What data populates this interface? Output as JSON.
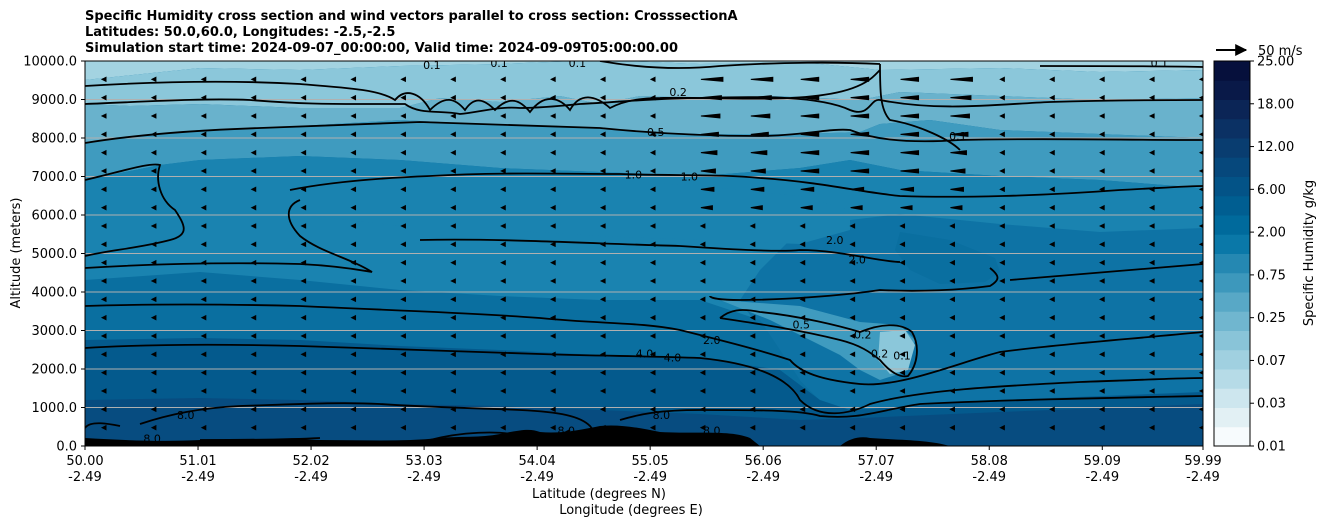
{
  "chart_data": {
    "type": "contour",
    "title_lines": [
      "Specific Humidity cross section and wind vectors parallel to cross section: CrosssectionA",
      "Latitudes: 50.0,60.0, Longitudes: -2.5,-2.5",
      "Simulation start time: 2024-09-07_00:00:00, Valid time: 2024-09-09T05:00:00.00"
    ],
    "xlabel_lines": [
      "Latitude (degrees N)",
      "Longitude (degrees E)"
    ],
    "ylabel": "Altitude (meters)",
    "x_ticks": [
      {
        "lat": "50.00",
        "lon": "-2.49"
      },
      {
        "lat": "51.01",
        "lon": "-2.49"
      },
      {
        "lat": "52.02",
        "lon": "-2.49"
      },
      {
        "lat": "53.03",
        "lon": "-2.49"
      },
      {
        "lat": "54.04",
        "lon": "-2.49"
      },
      {
        "lat": "55.05",
        "lon": "-2.49"
      },
      {
        "lat": "56.06",
        "lon": "-2.49"
      },
      {
        "lat": "57.07",
        "lon": "-2.49"
      },
      {
        "lat": "58.08",
        "lon": "-2.49"
      },
      {
        "lat": "59.09",
        "lon": "-2.49"
      },
      {
        "lat": "59.99",
        "lon": "-2.49"
      }
    ],
    "xlim": [
      50.0,
      59.99
    ],
    "y_ticks": [
      "0.0",
      "1000.0",
      "2000.0",
      "3000.0",
      "4000.0",
      "5000.0",
      "6000.0",
      "7000.0",
      "8000.0",
      "9000.0",
      "10000.0"
    ],
    "ylim": [
      0,
      10000
    ],
    "grid_y": true,
    "colorbar": {
      "label": "Specific Humidity g/kg",
      "ticks": [
        "0.01",
        "0.03",
        "0.07",
        "0.25",
        "0.75",
        "2.00",
        "6.00",
        "12.00",
        "18.00",
        "25.00"
      ],
      "colors": [
        "#f7fbfd",
        "#e2f0f4",
        "#cde6ee",
        "#b6dbe7",
        "#a0d0e0",
        "#89c4d8",
        "#70b6cf",
        "#58a8c6",
        "#3d98bc",
        "#2588b2",
        "#0a78a8",
        "#006a9c",
        "#005e91",
        "#035387",
        "#06487c",
        "#093d70",
        "#0b3164",
        "#0b2556",
        "#091948",
        "#06103c"
      ]
    },
    "contour_labels": [
      {
        "text": "0.1",
        "lat": 53.1,
        "alt": 9900
      },
      {
        "text": "0.1",
        "lat": 53.7,
        "alt": 9950
      },
      {
        "text": "0.1",
        "lat": 54.4,
        "alt": 9950
      },
      {
        "text": "0.1",
        "lat": 59.6,
        "alt": 9950
      },
      {
        "text": "0.2",
        "lat": 55.3,
        "alt": 9200
      },
      {
        "text": "0.5",
        "lat": 55.1,
        "alt": 8150
      },
      {
        "text": "1.0",
        "lat": 54.9,
        "alt": 7050
      },
      {
        "text": "1.0",
        "lat": 55.4,
        "alt": 7000
      },
      {
        "text": "0.1",
        "lat": 57.8,
        "alt": 8050
      },
      {
        "text": "2.0",
        "lat": 56.7,
        "alt": 5350
      },
      {
        "text": "2.0",
        "lat": 56.9,
        "alt": 4850
      },
      {
        "text": "0.5",
        "lat": 56.4,
        "alt": 3150
      },
      {
        "text": "0.2",
        "lat": 56.95,
        "alt": 2900
      },
      {
        "text": "0.2",
        "lat": 57.1,
        "alt": 2400
      },
      {
        "text": "0.1",
        "lat": 57.3,
        "alt": 2350
      },
      {
        "text": "2.0",
        "lat": 55.6,
        "alt": 2750
      },
      {
        "text": "4.0",
        "lat": 55.0,
        "alt": 2400
      },
      {
        "text": "4.0",
        "lat": 55.25,
        "alt": 2300
      },
      {
        "text": "8.0",
        "lat": 50.9,
        "alt": 800
      },
      {
        "text": "8.0",
        "lat": 50.6,
        "alt": 200
      },
      {
        "text": "8.0",
        "lat": 54.3,
        "alt": 400
      },
      {
        "text": "8.0",
        "lat": 55.15,
        "alt": 800
      },
      {
        "text": "8.0",
        "lat": 55.6,
        "alt": 400
      }
    ],
    "wind_reference": {
      "label": "50 m/s",
      "speed": 50
    }
  }
}
